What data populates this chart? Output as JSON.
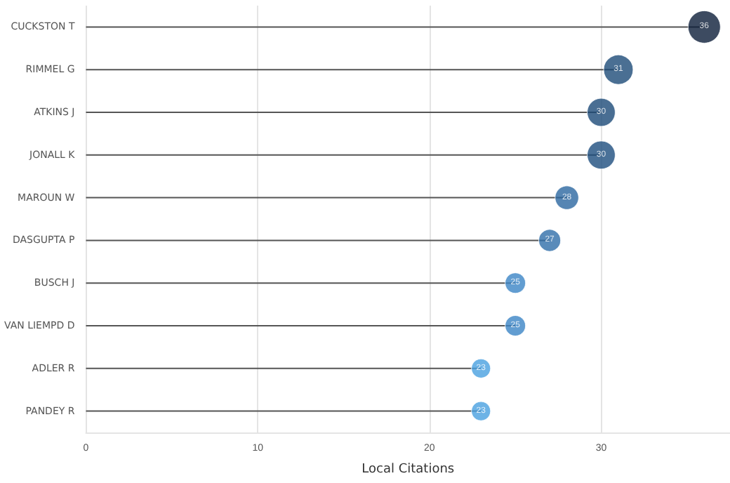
{
  "chart_data": {
    "type": "lollipop",
    "orientation": "horizontal",
    "xlabel": "Local Citations",
    "categories": [
      "CUCKSTON T",
      "RIMMEL G",
      "ATKINS J",
      "JONALL K",
      "MAROUN W",
      "DASGUPTA P",
      "BUSCH J",
      "VAN LIEMPD D",
      "ADLER R",
      "PANDEY R"
    ],
    "values": [
      36,
      31,
      30,
      30,
      28,
      27,
      25,
      25,
      23,
      23
    ],
    "sizes": [
      1,
      0.83,
      0.75,
      0.75,
      0.53,
      0.46,
      0.4,
      0.4,
      0.35,
      0.35
    ],
    "colors": [
      "#0c1e3a",
      "#1d4b78",
      "#1c4a78",
      "#1d4d7e",
      "#2b66a0",
      "#2f6ea9",
      "#3b85c6",
      "#3b85c6",
      "#49a0e0",
      "#49a0e0"
    ],
    "xlim": [
      0,
      37.5
    ],
    "xticks": [
      0,
      10,
      20,
      30
    ],
    "grid": "x",
    "data_labels": true,
    "marker": "circle"
  }
}
